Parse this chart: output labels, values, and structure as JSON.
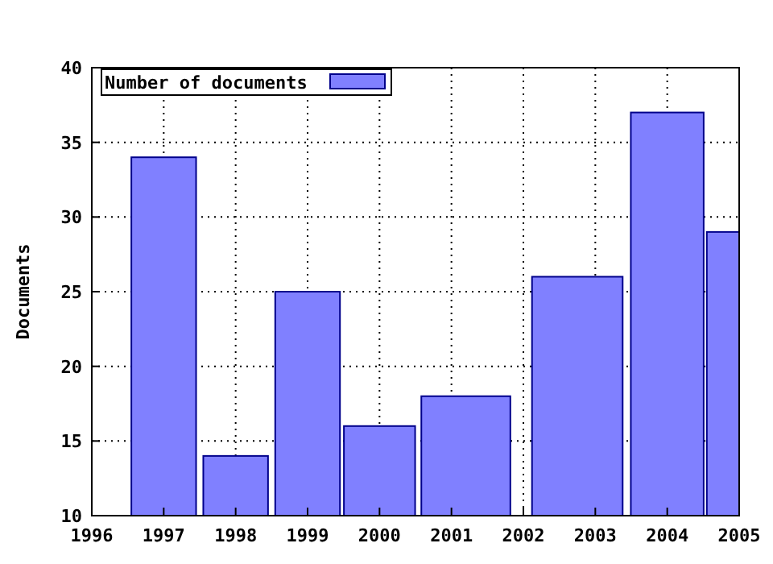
{
  "chart_data": {
    "type": "bar",
    "ylabel": "Documents",
    "x": [
      1997,
      1998,
      1999,
      2000,
      2001.2,
      2002.75,
      2004,
      2005
    ],
    "series": [
      {
        "name": "Number of documents",
        "color": "#8080ff",
        "values": [
          34,
          14,
          25,
          16,
          18,
          26,
          37,
          29
        ]
      }
    ],
    "xlim": [
      1996,
      2005
    ],
    "xticks": [
      1996,
      1997,
      1998,
      1999,
      2000,
      2001,
      2002,
      2003,
      2004,
      2005
    ],
    "ylim": [
      10,
      40
    ],
    "yticks": [
      10,
      15,
      20,
      25,
      30,
      35,
      40
    ],
    "grid": true,
    "legend": "top left"
  }
}
